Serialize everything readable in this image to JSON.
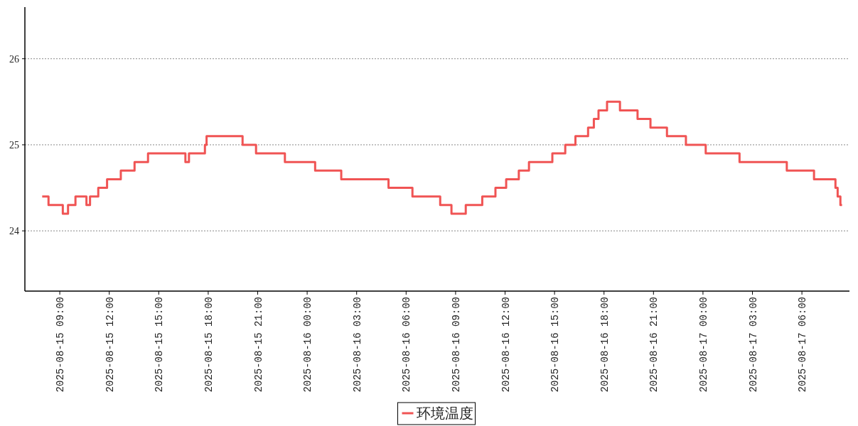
{
  "chart_data": {
    "type": "step",
    "x": [
      "2025-08-15T07:56",
      "2025-08-15T08:19",
      "2025-08-15T09:11",
      "2025-08-15T09:30",
      "2025-08-15T09:57",
      "2025-08-15T10:37",
      "2025-08-15T10:50",
      "2025-08-15T11:20",
      "2025-08-15T11:52",
      "2025-08-15T12:42",
      "2025-08-15T13:32",
      "2025-08-15T14:21",
      "2025-08-15T16:37",
      "2025-08-15T16:50",
      "2025-08-15T17:48",
      "2025-08-15T17:54",
      "2025-08-15T20:05",
      "2025-08-15T20:54",
      "2025-08-15T22:39",
      "2025-08-16T00:29",
      "2025-08-16T02:04",
      "2025-08-16T04:56",
      "2025-08-16T06:23",
      "2025-08-16T08:04",
      "2025-08-16T08:45",
      "2025-08-16T09:37",
      "2025-08-16T10:37",
      "2025-08-16T11:25",
      "2025-08-16T12:04",
      "2025-08-16T12:50",
      "2025-08-16T13:27",
      "2025-08-16T14:52",
      "2025-08-16T15:39",
      "2025-08-16T16:16",
      "2025-08-16T17:02",
      "2025-08-16T17:23",
      "2025-08-16T17:40",
      "2025-08-16T18:11",
      "2025-08-16T18:58",
      "2025-08-16T20:02",
      "2025-08-16T20:49",
      "2025-08-16T21:49",
      "2025-08-16T22:58",
      "2025-08-17T00:10",
      "2025-08-17T02:13",
      "2025-08-17T05:05",
      "2025-08-17T06:44",
      "2025-08-17T08:02",
      "2025-08-17T08:10",
      "2025-08-17T08:20",
      "2025-08-17T08:26"
    ],
    "series": [
      {
        "name": "环境温度",
        "color": "#f05454",
        "values": [
          24.4,
          24.3,
          24.2,
          24.3,
          24.4,
          24.3,
          24.4,
          24.5,
          24.6,
          24.7,
          24.8,
          24.9,
          24.8,
          24.9,
          25.0,
          25.1,
          25.0,
          24.9,
          24.8,
          24.7,
          24.6,
          24.5,
          24.4,
          24.3,
          24.2,
          24.3,
          24.4,
          24.5,
          24.6,
          24.7,
          24.8,
          24.9,
          25.0,
          25.1,
          25.2,
          25.3,
          25.4,
          25.5,
          25.4,
          25.3,
          25.2,
          25.1,
          25.0,
          24.9,
          24.8,
          24.7,
          24.6,
          24.5,
          24.4,
          24.3,
          24.3
        ]
      }
    ],
    "xlim": [
      "2025-08-15T06:53",
      "2025-08-17T08:53"
    ],
    "xticks": [
      {
        "value": "2025-08-15T09:00",
        "label": "2025-08-15 09:00"
      },
      {
        "value": "2025-08-15T12:00",
        "label": "2025-08-15 12:00"
      },
      {
        "value": "2025-08-15T15:00",
        "label": "2025-08-15 15:00"
      },
      {
        "value": "2025-08-15T18:00",
        "label": "2025-08-15 18:00"
      },
      {
        "value": "2025-08-15T21:00",
        "label": "2025-08-15 21:00"
      },
      {
        "value": "2025-08-16T00:00",
        "label": "2025-08-16 00:00"
      },
      {
        "value": "2025-08-16T03:00",
        "label": "2025-08-16 03:00"
      },
      {
        "value": "2025-08-16T06:00",
        "label": "2025-08-16 06:00"
      },
      {
        "value": "2025-08-16T09:00",
        "label": "2025-08-16 09:00"
      },
      {
        "value": "2025-08-16T12:00",
        "label": "2025-08-16 12:00"
      },
      {
        "value": "2025-08-16T15:00",
        "label": "2025-08-16 15:00"
      },
      {
        "value": "2025-08-16T18:00",
        "label": "2025-08-16 18:00"
      },
      {
        "value": "2025-08-16T21:00",
        "label": "2025-08-16 21:00"
      },
      {
        "value": "2025-08-17T00:00",
        "label": "2025-08-17 00:00"
      },
      {
        "value": "2025-08-17T03:00",
        "label": "2025-08-17 03:00"
      },
      {
        "value": "2025-08-17T06:00",
        "label": "2025-08-17 06:00"
      }
    ],
    "ylim": [
      23.3,
      26.6
    ],
    "yticks": [
      24,
      25,
      26
    ],
    "grid": "y",
    "legend": "bottom",
    "line_style": "solid",
    "marker": "none"
  }
}
